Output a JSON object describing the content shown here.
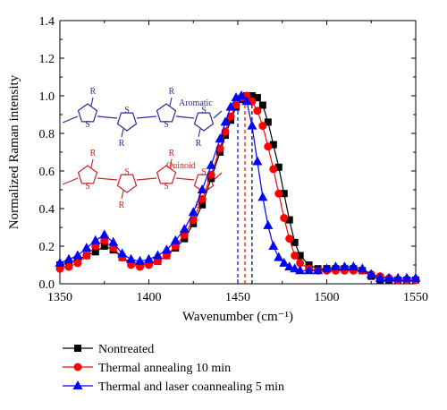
{
  "chart_data": {
    "type": "line",
    "xlabel": "Wavenumber (cm⁻¹)",
    "ylabel": "Normalized Raman intensity",
    "xlim": [
      1350,
      1550
    ],
    "ylim": [
      0.0,
      1.4
    ],
    "x_ticks": [
      1350,
      1400,
      1450,
      1500,
      1550
    ],
    "y_ticks": [
      0.0,
      0.2,
      0.4,
      0.6,
      0.8,
      1.0,
      1.2,
      1.4
    ],
    "x_tick_labels": [
      "1350",
      "1400",
      "1450",
      "1500",
      "1550"
    ],
    "y_tick_labels": [
      "0.0",
      "0.2",
      "0.4",
      "0.6",
      "0.8",
      "1.0",
      "1.2",
      "1.4"
    ],
    "legend_position": "bottom",
    "grid": false,
    "series": [
      {
        "name": "Nontreated",
        "color": "#000000",
        "marker": "square",
        "peak_x": 1458,
        "x": [
          1350,
          1355,
          1360,
          1365,
          1370,
          1375,
          1380,
          1385,
          1390,
          1395,
          1400,
          1405,
          1410,
          1415,
          1420,
          1425,
          1430,
          1435,
          1440,
          1443,
          1446,
          1449,
          1452,
          1455,
          1458,
          1461,
          1464,
          1467,
          1470,
          1473,
          1476,
          1479,
          1482,
          1485,
          1490,
          1495,
          1500,
          1505,
          1510,
          1515,
          1520,
          1525,
          1530,
          1535,
          1540,
          1545,
          1550
        ],
        "y": [
          0.1,
          0.11,
          0.13,
          0.15,
          0.17,
          0.2,
          0.18,
          0.14,
          0.11,
          0.1,
          0.11,
          0.12,
          0.15,
          0.19,
          0.24,
          0.32,
          0.42,
          0.56,
          0.7,
          0.79,
          0.87,
          0.94,
          0.98,
          1.0,
          1.0,
          0.99,
          0.95,
          0.86,
          0.74,
          0.62,
          0.48,
          0.34,
          0.22,
          0.15,
          0.1,
          0.08,
          0.08,
          0.08,
          0.08,
          0.08,
          0.07,
          0.04,
          0.02,
          0.02,
          0.02,
          0.02,
          0.02
        ]
      },
      {
        "name": "Thermal annealing 10 min",
        "color": "#ff0000",
        "marker": "circle",
        "peak_x": 1454,
        "x": [
          1350,
          1355,
          1360,
          1365,
          1370,
          1375,
          1380,
          1385,
          1390,
          1395,
          1400,
          1405,
          1410,
          1415,
          1420,
          1425,
          1430,
          1435,
          1440,
          1443,
          1446,
          1449,
          1452,
          1455,
          1458,
          1461,
          1464,
          1467,
          1470,
          1473,
          1476,
          1479,
          1482,
          1485,
          1490,
          1495,
          1500,
          1505,
          1510,
          1515,
          1520,
          1525,
          1530,
          1535,
          1540,
          1545,
          1550
        ],
        "y": [
          0.08,
          0.09,
          0.11,
          0.15,
          0.2,
          0.23,
          0.19,
          0.14,
          0.1,
          0.09,
          0.1,
          0.12,
          0.15,
          0.2,
          0.26,
          0.34,
          0.45,
          0.58,
          0.72,
          0.81,
          0.89,
          0.95,
          0.99,
          1.0,
          0.97,
          0.92,
          0.84,
          0.73,
          0.61,
          0.48,
          0.35,
          0.24,
          0.15,
          0.11,
          0.08,
          0.07,
          0.07,
          0.07,
          0.07,
          0.07,
          0.07,
          0.05,
          0.04,
          0.03,
          0.02,
          0.02,
          0.02
        ]
      },
      {
        "name": "Thermal and laser coannealing 5 min",
        "color": "#0000ff",
        "marker": "triangle",
        "peak_x": 1450,
        "x": [
          1350,
          1355,
          1360,
          1365,
          1370,
          1375,
          1380,
          1385,
          1390,
          1395,
          1400,
          1405,
          1410,
          1415,
          1420,
          1425,
          1430,
          1435,
          1440,
          1443,
          1446,
          1449,
          1452,
          1455,
          1458,
          1461,
          1464,
          1467,
          1470,
          1473,
          1476,
          1479,
          1482,
          1485,
          1490,
          1495,
          1500,
          1505,
          1510,
          1515,
          1520,
          1525,
          1530,
          1535,
          1540,
          1545,
          1550
        ],
        "y": [
          0.11,
          0.13,
          0.15,
          0.19,
          0.23,
          0.26,
          0.22,
          0.16,
          0.13,
          0.12,
          0.13,
          0.15,
          0.18,
          0.23,
          0.29,
          0.38,
          0.5,
          0.63,
          0.77,
          0.86,
          0.94,
          0.99,
          1.0,
          0.97,
          0.84,
          0.65,
          0.46,
          0.31,
          0.2,
          0.14,
          0.11,
          0.09,
          0.08,
          0.07,
          0.07,
          0.07,
          0.08,
          0.09,
          0.09,
          0.09,
          0.08,
          0.05,
          0.03,
          0.03,
          0.03,
          0.03,
          0.03
        ]
      }
    ],
    "structures": [
      {
        "name": "Aromatic",
        "color": "#2b2b99",
        "substituent": "R",
        "heteroatom": "S"
      },
      {
        "name": "Quinoid",
        "color": "#cc2222",
        "substituent": "R",
        "heteroatom": "S"
      }
    ]
  }
}
